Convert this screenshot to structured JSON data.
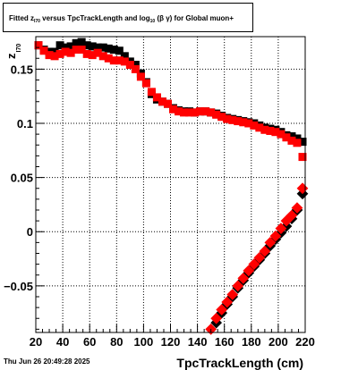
{
  "title": {
    "part1": "Fitted  z",
    "sub1": "I70",
    "part2": "  versus TpcTrackLength and log",
    "sub2": "10",
    "part3": " (β  γ) for Global muon+"
  },
  "footer": {
    "date": "Thu Jun 26 20:49:28 2025"
  },
  "chart_data": {
    "type": "scatter",
    "title": "Fitted z_I70 versus TpcTrackLength and log10(βγ) for Global muon+",
    "xlabel": "TpcTrackLength (cm)",
    "ylabel": "z",
    "ylabel_sub": "I70",
    "xlim": [
      20,
      220
    ],
    "ylim": [
      -0.093,
      0.18
    ],
    "xticks": [
      20,
      40,
      60,
      80,
      100,
      120,
      140,
      160,
      180,
      200,
      220
    ],
    "yticks": [
      -0.05,
      0,
      0.05,
      0.1,
      0.15
    ],
    "ytick_labels": [
      "−0.05",
      "0",
      "0.05",
      "0.1",
      "0.15"
    ],
    "grid": true,
    "marker": "square",
    "series": [
      {
        "color": "#000000",
        "x": [
          22,
          26,
          30,
          34,
          38,
          42,
          46,
          50,
          54,
          58,
          62,
          66,
          70,
          74,
          78,
          82,
          86,
          90,
          94,
          98,
          102,
          106,
          110,
          114,
          118,
          122,
          126,
          130,
          134,
          138,
          142,
          146,
          150,
          154,
          158,
          162,
          166,
          170,
          174,
          178,
          182,
          186,
          190,
          194,
          198,
          202,
          206,
          210,
          214,
          218
        ],
        "y": [
          0.172,
          0.168,
          0.166,
          0.166,
          0.172,
          0.17,
          0.171,
          0.174,
          0.175,
          0.172,
          0.171,
          0.17,
          0.17,
          0.169,
          0.168,
          0.167,
          0.162,
          0.157,
          0.154,
          0.146,
          0.138,
          0.127,
          0.122,
          0.12,
          0.118,
          0.114,
          0.112,
          0.111,
          0.111,
          0.11,
          0.111,
          0.111,
          0.11,
          0.109,
          0.107,
          0.105,
          0.104,
          0.103,
          0.102,
          0.101,
          0.1,
          0.098,
          0.096,
          0.095,
          0.094,
          0.092,
          0.089,
          0.088,
          0.086,
          0.083
        ]
      },
      {
        "color": "#ff0000",
        "x": [
          22,
          26,
          30,
          34,
          38,
          42,
          46,
          50,
          54,
          58,
          62,
          66,
          70,
          74,
          78,
          82,
          86,
          90,
          94,
          98,
          102,
          106,
          110,
          114,
          118,
          122,
          126,
          130,
          134,
          138,
          142,
          146,
          150,
          154,
          158,
          162,
          166,
          170,
          174,
          178,
          182,
          186,
          190,
          194,
          198,
          202,
          206,
          210,
          214,
          218
        ],
        "y": [
          0.172,
          0.167,
          0.163,
          0.162,
          0.164,
          0.166,
          0.165,
          0.168,
          0.168,
          0.164,
          0.163,
          0.165,
          0.162,
          0.16,
          0.158,
          0.158,
          0.157,
          0.154,
          0.15,
          0.143,
          0.137,
          0.129,
          0.124,
          0.12,
          0.118,
          0.113,
          0.111,
          0.11,
          0.11,
          0.11,
          0.111,
          0.111,
          0.11,
          0.108,
          0.106,
          0.104,
          0.103,
          0.102,
          0.101,
          0.1,
          0.098,
          0.096,
          0.094,
          0.093,
          0.092,
          0.09,
          0.087,
          0.084,
          0.082,
          0.069
        ]
      },
      {
        "color": "#000000",
        "x": [
          154,
          158,
          162,
          166,
          170,
          174,
          178,
          182,
          186,
          190,
          194,
          198,
          202,
          206,
          210,
          214,
          218
        ],
        "y": [
          -0.084,
          -0.075,
          -0.067,
          -0.06,
          -0.052,
          -0.045,
          -0.038,
          -0.032,
          -0.026,
          -0.02,
          -0.013,
          -0.007,
          -0.001,
          0.005,
          0.012,
          0.02,
          0.035
        ]
      },
      {
        "color": "#ff0000",
        "x": [
          150,
          154,
          158,
          162,
          166,
          170,
          174,
          178,
          182,
          186,
          190,
          194,
          198,
          202,
          206,
          210,
          214,
          218
        ],
        "y": [
          -0.09,
          -0.08,
          -0.072,
          -0.065,
          -0.058,
          -0.05,
          -0.043,
          -0.036,
          -0.03,
          -0.024,
          -0.018,
          -0.01,
          -0.004,
          0.003,
          0.01,
          0.015,
          0.022,
          0.04
        ]
      }
    ]
  }
}
